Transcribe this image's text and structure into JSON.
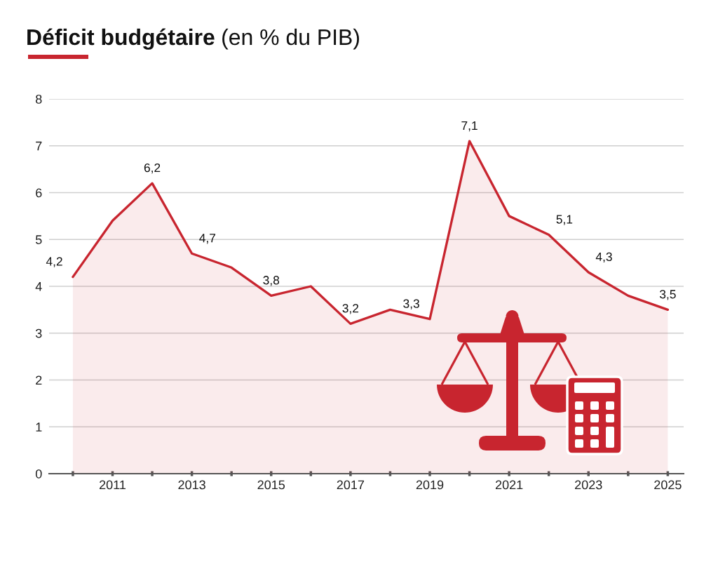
{
  "chart_data": {
    "type": "area",
    "title": "Déficit budgétaire",
    "subtitle": "(en % du PIB)",
    "x": [
      2010,
      2011,
      2012,
      2013,
      2014,
      2015,
      2016,
      2017,
      2018,
      2019,
      2020,
      2021,
      2022,
      2023,
      2024,
      2025
    ],
    "values": [
      4.2,
      5.4,
      6.2,
      4.7,
      4.4,
      3.8,
      4.0,
      3.2,
      3.5,
      3.3,
      7.1,
      5.5,
      5.1,
      4.3,
      3.8,
      3.5
    ],
    "value_labels": [
      "4,2",
      null,
      "6,2",
      "4,7",
      null,
      "3,8",
      null,
      "3,2",
      null,
      "3,3",
      "7,1",
      null,
      "5,1",
      "4,3",
      null,
      "3,5"
    ],
    "color": "#c8252f",
    "xlim": [
      2009.4,
      2025.4
    ],
    "xticks": [
      {
        "value": 2010,
        "label": null
      },
      2011,
      {
        "value": 2012,
        "label": null
      },
      2013,
      {
        "value": 2014,
        "label": null
      },
      2015,
      {
        "value": 2016,
        "label": null
      },
      2017,
      {
        "value": 2018,
        "label": null
      },
      2019,
      {
        "value": 2020,
        "label": null
      },
      2021,
      {
        "value": 2022,
        "label": null
      },
      2023,
      {
        "value": 2024,
        "label": null
      },
      2025
    ],
    "ylim": [
      0,
      8
    ],
    "yticks": [
      0,
      1,
      2,
      3,
      4,
      5,
      6,
      7,
      8
    ],
    "grid": "y",
    "line_style": "solid"
  }
}
